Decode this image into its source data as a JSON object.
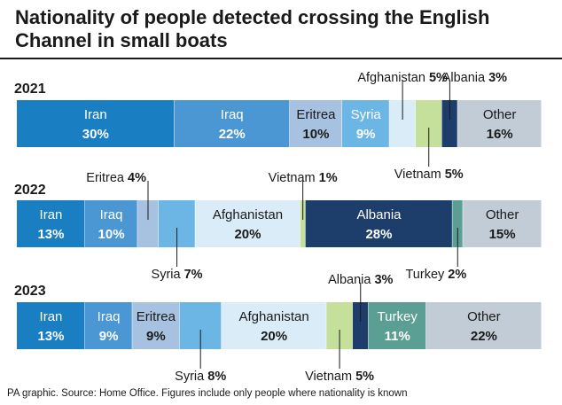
{
  "title": "Nationality of people detected crossing the English Channel in small boats",
  "footer": "PA graphic. Source: Home Office. Figures include only people where nationality is known",
  "colors": {
    "Iran": "#1a7ec3",
    "Iraq": "#4a97d3",
    "Eritrea": "#a7c2e0",
    "Syria": "#6cb6e6",
    "Afghanistan": "#d9ecf8",
    "Vietnam": "#c4e09a",
    "Albania": "#1d3d6b",
    "Turkey": "#5b9e94",
    "Other": "#c1ccd6"
  },
  "chart_data": {
    "type": "bar",
    "stacked": true,
    "unit": "%",
    "years": [
      {
        "year": "2021",
        "segments": [
          {
            "name": "Iran",
            "value": 30,
            "label": "inside"
          },
          {
            "name": "Iraq",
            "value": 22,
            "label": "inside"
          },
          {
            "name": "Eritrea",
            "value": 10,
            "label": "inside"
          },
          {
            "name": "Syria",
            "value": 9,
            "label": "inside"
          },
          {
            "name": "Afghanistan",
            "value": 5,
            "label": "above"
          },
          {
            "name": "Vietnam",
            "value": 5,
            "label": "below"
          },
          {
            "name": "Albania",
            "value": 3,
            "label": "above"
          },
          {
            "name": "Other",
            "value": 16,
            "label": "inside"
          }
        ]
      },
      {
        "year": "2022",
        "segments": [
          {
            "name": "Iran",
            "value": 13,
            "label": "inside"
          },
          {
            "name": "Iraq",
            "value": 10,
            "label": "inside"
          },
          {
            "name": "Eritrea",
            "value": 4,
            "label": "above"
          },
          {
            "name": "Syria",
            "value": 7,
            "label": "below"
          },
          {
            "name": "Afghanistan",
            "value": 20,
            "label": "inside"
          },
          {
            "name": "Vietnam",
            "value": 1,
            "label": "above"
          },
          {
            "name": "Albania",
            "value": 28,
            "label": "inside"
          },
          {
            "name": "Turkey",
            "value": 2,
            "label": "below"
          },
          {
            "name": "Other",
            "value": 15,
            "label": "inside"
          }
        ]
      },
      {
        "year": "2023",
        "segments": [
          {
            "name": "Iran",
            "value": 13,
            "label": "inside"
          },
          {
            "name": "Iraq",
            "value": 9,
            "label": "inside"
          },
          {
            "name": "Eritrea",
            "value": 9,
            "label": "inside"
          },
          {
            "name": "Syria",
            "value": 8,
            "label": "below"
          },
          {
            "name": "Afghanistan",
            "value": 20,
            "label": "inside"
          },
          {
            "name": "Vietnam",
            "value": 5,
            "label": "below"
          },
          {
            "name": "Albania",
            "value": 3,
            "label": "above"
          },
          {
            "name": "Turkey",
            "value": 11,
            "label": "inside"
          },
          {
            "name": "Other",
            "value": 22,
            "label": "inside"
          }
        ]
      }
    ]
  }
}
